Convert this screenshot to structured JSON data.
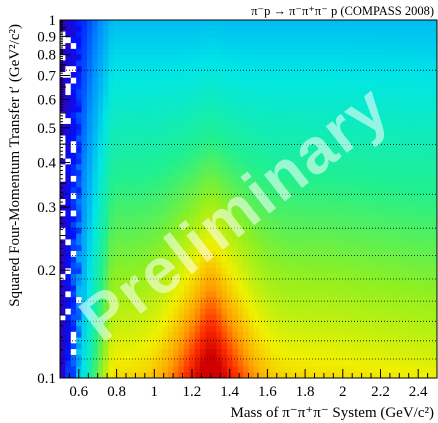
{
  "chart_data": {
    "type": "heatmap",
    "title": "π⁻p → π⁻π⁺π⁻ p (COMPASS 2008)",
    "xlabel": "Mass of π⁻π⁺π⁻ System (GeV/c²)",
    "ylabel": "Squared Four-Momentum Transfer t′ (GeV²/c²)",
    "xlim": [
      0.5,
      2.5
    ],
    "ylim": [
      0.1,
      1.0
    ],
    "y_scale": "log",
    "x_ticks": [
      {
        "value": 0.6,
        "label": "0.6"
      },
      {
        "value": 0.8,
        "label": "0.8"
      },
      {
        "value": 1.0,
        "label": "1"
      },
      {
        "value": 1.2,
        "label": "1.2"
      },
      {
        "value": 1.4,
        "label": "1.4"
      },
      {
        "value": 1.6,
        "label": "1.6"
      },
      {
        "value": 1.8,
        "label": "1.8"
      },
      {
        "value": 2.0,
        "label": "2"
      },
      {
        "value": 2.2,
        "label": "2.2"
      },
      {
        "value": 2.4,
        "label": "2.4"
      }
    ],
    "y_ticks": [
      {
        "value": 0.1,
        "label": "0.1"
      },
      {
        "value": 0.2,
        "label": "0.2"
      },
      {
        "value": 0.3,
        "label": "0.3"
      },
      {
        "value": 0.4,
        "label": "0.4"
      },
      {
        "value": 0.5,
        "label": "0.5"
      },
      {
        "value": 0.6,
        "label": "0.6"
      },
      {
        "value": 0.7,
        "label": "0.7"
      },
      {
        "value": 0.8,
        "label": "0.8"
      },
      {
        "value": 0.9,
        "label": "0.9"
      },
      {
        "value": 1.0,
        "label": "1"
      }
    ],
    "t_bin_boundaries": [
      0.113,
      0.127,
      0.144,
      0.164,
      0.189,
      0.22,
      0.262,
      0.326,
      0.449,
      0.724
    ],
    "peak_mass": 1.3,
    "peak_t": 0.1,
    "colormap": [
      "#3a00a8",
      "#0010ff",
      "#0090ff",
      "#00e6e6",
      "#20f090",
      "#90f020",
      "#f0f000",
      "#ffa000",
      "#ff3000",
      "#d00000"
    ],
    "grid": false,
    "legend": "none",
    "watermark": "Preliminary"
  }
}
